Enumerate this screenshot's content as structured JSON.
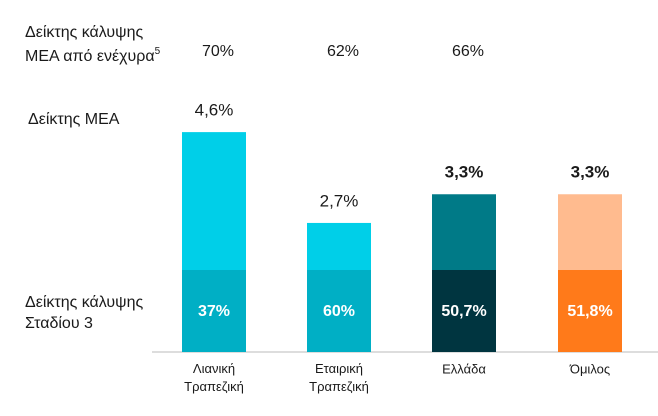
{
  "chart_data": {
    "type": "bar",
    "categories": [
      "Λιανική Τραπεζική",
      "Εταιρική Τραπεζική",
      "Ελλάδα",
      "Όμιλος"
    ],
    "ylim": [
      0,
      5
    ],
    "row_labels": {
      "collateral_coverage": [
        "Δείκτης κάλυψης",
        "ΜΕΑ από ενέχυρα"
      ],
      "collateral_coverage_note": "5",
      "npe_ratio": "Δείκτης ΜΕΑ",
      "stage3_coverage": [
        "Δείκτης κάλυψης",
        "Σταδίου 3"
      ]
    },
    "collateral_coverage": {
      "values": [
        70,
        62,
        66
      ],
      "value_labels": [
        "70%",
        "62%",
        "66%"
      ]
    },
    "npe_ratio": {
      "values": [
        4.6,
        2.7,
        3.3,
        3.3
      ],
      "value_labels": [
        "4,6%",
        "2,7%",
        "3,3%",
        "3,3%"
      ],
      "bold": [
        false,
        false,
        true,
        true
      ],
      "colors": [
        "#00cfe8",
        "#00cfe8",
        "#007a87",
        "#ffbb8f"
      ]
    },
    "stage3_coverage": {
      "values": [
        37,
        60,
        50.7,
        51.8
      ],
      "value_labels": [
        "37%",
        "60%",
        "50,7%",
        "51,8%"
      ],
      "colors": [
        "#00afc5",
        "#00afc5",
        "#003540",
        "#ff7a1a"
      ]
    }
  }
}
